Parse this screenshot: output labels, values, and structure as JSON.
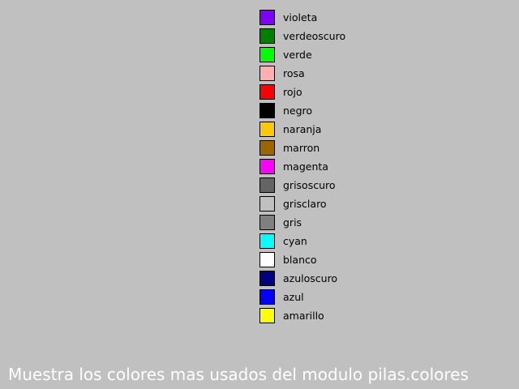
{
  "colors": [
    {
      "name": "violeta",
      "hex": "#8000ff"
    },
    {
      "name": "verdeoscuro",
      "hex": "#008000"
    },
    {
      "name": "verde",
      "hex": "#00ff00"
    },
    {
      "name": "rosa",
      "hex": "#ffafaf"
    },
    {
      "name": "rojo",
      "hex": "#ff0000"
    },
    {
      "name": "negro",
      "hex": "#000000"
    },
    {
      "name": "naranja",
      "hex": "#ffc800"
    },
    {
      "name": "marron",
      "hex": "#996600"
    },
    {
      "name": "magenta",
      "hex": "#ff00ff"
    },
    {
      "name": "grisoscuro",
      "hex": "#646464"
    },
    {
      "name": "grisclaro",
      "hex": "#c0c0c0"
    },
    {
      "name": "gris",
      "hex": "#808080"
    },
    {
      "name": "cyan",
      "hex": "#00ffff"
    },
    {
      "name": "blanco",
      "hex": "#ffffff"
    },
    {
      "name": "azuloscuro",
      "hex": "#000080"
    },
    {
      "name": "azul",
      "hex": "#0000ff"
    },
    {
      "name": "amarillo",
      "hex": "#ffff00"
    }
  ],
  "caption": "Muestra los colores mas usados del modulo pilas.colores",
  "background": "#c0c0c0"
}
